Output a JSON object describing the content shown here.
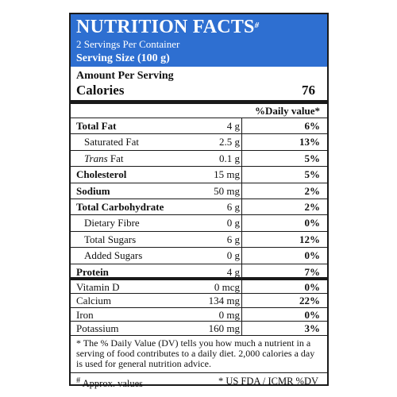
{
  "header": {
    "title": "NUTRITION FACTS",
    "title_mark": "#",
    "servings": "2 Servings Per Container",
    "serving_size": "Serving Size (100 g)"
  },
  "amount_per_serving": "Amount Per Serving",
  "calories": {
    "label": "Calories",
    "value": "76"
  },
  "daily_value_header": "%Daily value*",
  "nutrients": [
    {
      "name": "Total Fat",
      "amount": "4 g",
      "dv": "6%"
    },
    {
      "name": "Saturated Fat",
      "amount": "2.5 g",
      "dv": "13%"
    },
    {
      "name_italic": "Trans",
      "name": " Fat",
      "amount": "0.1 g",
      "dv": "5%"
    },
    {
      "name": "Cholesterol",
      "amount": "15 mg",
      "dv": "5%"
    },
    {
      "name": "Sodium",
      "amount": "50 mg",
      "dv": "2%"
    },
    {
      "name": "Total Carbohydrate",
      "amount": "6 g",
      "dv": "2%"
    },
    {
      "name": "Dietary Fibre",
      "amount": "0 g",
      "dv": "0%"
    },
    {
      "name": "Total Sugars",
      "amount": "6 g",
      "dv": "12%"
    },
    {
      "name": "Added Sugars",
      "amount": "0 g",
      "dv": "0%"
    },
    {
      "name": "Protein",
      "amount": "4 g",
      "dv": "7%"
    }
  ],
  "vitamins": [
    {
      "name": "Vitamin D",
      "amount": "0 mcg",
      "dv": "0%"
    },
    {
      "name": "Calcium",
      "amount": "134 mg",
      "dv": "22%"
    },
    {
      "name": "Iron",
      "amount": "0 mg",
      "dv": "0%"
    },
    {
      "name": "Potassium",
      "amount": "160 mg",
      "dv": "3%"
    }
  ],
  "footnote": "* The % Daily Value (DV) tells you how much a nutrient in a serving of food contributes to a daily diet. 2,000 calories a day is used for general nutrition advice.",
  "footer": {
    "approx_mark": "#",
    "approx": " Approx. values",
    "source": "* US FDA / ICMR  %DV"
  },
  "colors": {
    "header_bg": "#2e6fd1",
    "text": "#111111",
    "rule": "#1a1a1a"
  }
}
